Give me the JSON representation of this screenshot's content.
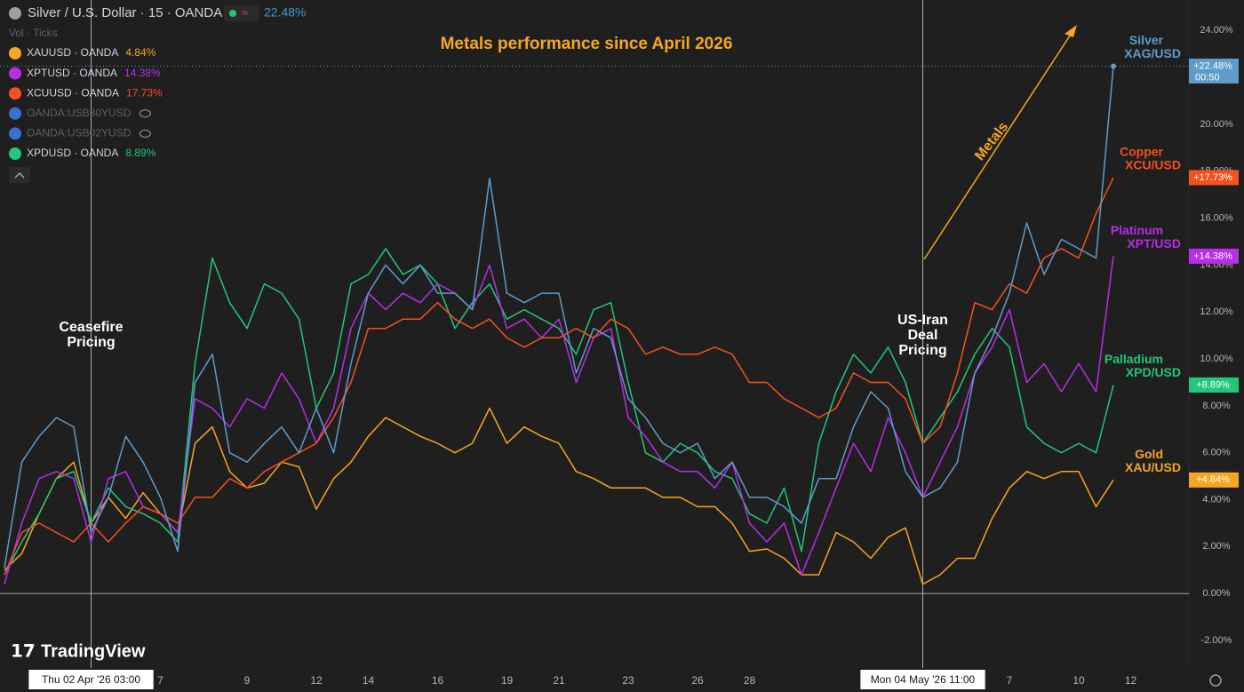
{
  "header": {
    "title": "Silver / U.S. Dollar · 15 · OANDA",
    "change": "22.48%",
    "volume": "Vol · Ticks"
  },
  "legend": [
    {
      "symbol": "XAUUSD · OANDA",
      "change": "4.84%",
      "color": "#f5a623"
    },
    {
      "symbol": "XPTUSD · OANDA",
      "change": "14.38%",
      "color": "#b72ee6"
    },
    {
      "symbol": "XCUUSD · OANDA",
      "change": "17.73%",
      "color": "#f4511e"
    },
    {
      "symbol": "OANDA:USB30YUSD",
      "color": "#6a6d78"
    },
    {
      "symbol": "OANDA:USB02YUSD",
      "color": "#6a6d78"
    },
    {
      "symbol": "XPDUSD · OANDA",
      "change": "8.89%",
      "color": "#22c77a"
    }
  ],
  "watermark": "TradingView",
  "chart_data": {
    "type": "line",
    "title": "Metals performance since April 2026",
    "arrow_label": "Metals",
    "countdown": "00:50",
    "annotations": [
      [
        "Ceasefire",
        "Pricing"
      ],
      [
        "US-Iran",
        "Deal",
        "Pricing"
      ]
    ],
    "categories": [
      null,
      null,
      null,
      null,
      null,
      "Thu 02 Apr '26  03:00",
      null,
      null,
      null,
      "7",
      null,
      null,
      null,
      null,
      "9",
      null,
      null,
      null,
      "12",
      null,
      null,
      "14",
      null,
      null,
      null,
      "16",
      null,
      null,
      null,
      "19",
      null,
      null,
      "21",
      null,
      null,
      null,
      "23",
      null,
      null,
      null,
      "26",
      null,
      null,
      "28",
      null,
      null,
      null,
      null,
      null,
      null,
      null,
      null,
      null,
      "Mon 04 May '26  11:00",
      null,
      null,
      null,
      null,
      "7",
      null,
      null,
      null,
      "10",
      null,
      null,
      "12"
    ],
    "ylim": [
      -3.1,
      25.3
    ],
    "yticks": [
      {
        "value": -2,
        "label": "-2.00%"
      },
      {
        "value": 0,
        "label": "0.00%"
      },
      {
        "value": 2,
        "label": "2.00%"
      },
      {
        "value": 4,
        "label": "4.00%"
      },
      {
        "value": 6,
        "label": "6.00%"
      },
      {
        "value": 8,
        "label": "8.00%"
      },
      {
        "value": 10,
        "label": "10.00%"
      },
      {
        "value": 12,
        "label": "12.00%"
      },
      {
        "value": 14,
        "label": "14.00%"
      },
      {
        "value": 16,
        "label": "16.00%"
      },
      {
        "value": 18,
        "label": "18.00%"
      },
      {
        "value": 20,
        "label": "20.00%"
      },
      {
        "value": 22,
        "label": "22.00%"
      },
      {
        "value": 24,
        "label": "24.00%"
      }
    ],
    "series": [
      {
        "name": "Gold",
        "symbol": "XAU/USD",
        "color": "#f5a623",
        "values": [
          1.0,
          1.7,
          3.4,
          4.9,
          5.6,
          3.0,
          4.1,
          3.2,
          4.3,
          3.4,
          2.6,
          6.4,
          7.1,
          5.2,
          4.5,
          4.7,
          5.6,
          5.4,
          3.6,
          4.9,
          5.6,
          6.7,
          7.5,
          7.1,
          6.7,
          6.4,
          6.0,
          6.4,
          7.9,
          6.4,
          7.1,
          6.7,
          6.4,
          5.2,
          4.9,
          4.5,
          4.5,
          4.5,
          4.1,
          4.1,
          3.7,
          3.7,
          3.0,
          1.8,
          1.9,
          1.5,
          0.8,
          0.8,
          2.6,
          2.2,
          1.5,
          2.4,
          2.8,
          0.4,
          0.8,
          1.5,
          1.5,
          3.2,
          4.5,
          5.2,
          4.9,
          5.2,
          5.2,
          3.7,
          4.84,
          null
        ],
        "value_labels": [
          null,
          null,
          null,
          null,
          null,
          null,
          null,
          null,
          null,
          null,
          null,
          null,
          null,
          null,
          null,
          null,
          null,
          null,
          null,
          null,
          null,
          null,
          null,
          null,
          null,
          null,
          null,
          null,
          null,
          null,
          null,
          null,
          null,
          null,
          null,
          null,
          null,
          null,
          null,
          null,
          null,
          null,
          null,
          null,
          null,
          null,
          null,
          null,
          null,
          null,
          null,
          null,
          null,
          null,
          null,
          null,
          null,
          null,
          null,
          null,
          null,
          null,
          null,
          null,
          "+4.84%",
          null
        ]
      },
      {
        "name": "Palladium",
        "symbol": "XPD/USD",
        "color": "#22c77a",
        "values": [
          0.8,
          2.2,
          3.4,
          4.9,
          5.2,
          3.0,
          4.5,
          3.7,
          3.4,
          3.0,
          2.2,
          9.8,
          14.3,
          12.4,
          11.3,
          13.2,
          12.8,
          11.7,
          7.9,
          9.4,
          13.2,
          13.6,
          14.7,
          13.6,
          14.0,
          13.2,
          11.3,
          12.4,
          13.2,
          11.7,
          12.1,
          11.7,
          11.3,
          10.2,
          12.1,
          12.4,
          9.0,
          6.0,
          5.6,
          6.4,
          6.0,
          5.2,
          4.9,
          3.4,
          3.0,
          4.5,
          1.8,
          6.4,
          8.6,
          10.2,
          9.4,
          10.5,
          9.0,
          6.4,
          7.5,
          8.6,
          10.2,
          11.3,
          10.5,
          7.1,
          6.4,
          6.0,
          6.4,
          6.0,
          8.89,
          null
        ],
        "value_labels": [
          null,
          null,
          null,
          null,
          null,
          null,
          null,
          null,
          null,
          null,
          null,
          null,
          null,
          null,
          null,
          null,
          null,
          null,
          null,
          null,
          null,
          null,
          null,
          null,
          null,
          null,
          null,
          null,
          null,
          null,
          null,
          null,
          null,
          null,
          null,
          null,
          null,
          null,
          null,
          null,
          null,
          null,
          null,
          null,
          null,
          null,
          null,
          null,
          null,
          null,
          null,
          null,
          null,
          null,
          null,
          null,
          null,
          null,
          null,
          null,
          null,
          null,
          null,
          null,
          "+8.89%",
          null
        ]
      },
      {
        "name": "Platinum",
        "symbol": "XPT/USD",
        "color": "#b72ee6",
        "values": [
          0.4,
          3.0,
          4.9,
          5.2,
          4.9,
          2.2,
          4.9,
          5.2,
          3.7,
          3.4,
          2.6,
          8.3,
          7.9,
          7.1,
          8.3,
          7.9,
          9.4,
          8.3,
          6.4,
          7.9,
          11.3,
          12.8,
          12.1,
          12.8,
          12.4,
          13.2,
          12.8,
          12.1,
          14.0,
          11.3,
          11.7,
          10.9,
          11.7,
          9.0,
          10.9,
          11.3,
          7.5,
          6.7,
          5.6,
          5.2,
          5.2,
          4.5,
          5.6,
          3.0,
          2.2,
          3.0,
          0.8,
          2.6,
          4.5,
          6.4,
          5.2,
          7.5,
          6.0,
          4.1,
          5.6,
          7.1,
          9.4,
          10.5,
          12.1,
          9.0,
          9.8,
          8.6,
          9.8,
          8.6,
          14.38,
          null
        ],
        "value_labels": [
          null,
          null,
          null,
          null,
          null,
          null,
          null,
          null,
          null,
          null,
          null,
          null,
          null,
          null,
          null,
          null,
          null,
          null,
          null,
          null,
          null,
          null,
          null,
          null,
          null,
          null,
          null,
          null,
          null,
          null,
          null,
          null,
          null,
          null,
          null,
          null,
          null,
          null,
          null,
          null,
          null,
          null,
          null,
          null,
          null,
          null,
          null,
          null,
          null,
          null,
          null,
          null,
          null,
          null,
          null,
          null,
          null,
          null,
          null,
          null,
          null,
          null,
          null,
          null,
          "+14.38%",
          null
        ]
      },
      {
        "name": "Copper",
        "symbol": "XCU/USD",
        "color": "#f4511e",
        "values": [
          0.8,
          2.6,
          3.0,
          2.6,
          2.2,
          3.0,
          2.2,
          3.0,
          3.7,
          3.4,
          3.0,
          4.1,
          4.1,
          4.9,
          4.5,
          5.2,
          5.6,
          6.0,
          6.4,
          7.5,
          9.0,
          11.3,
          11.3,
          11.7,
          11.7,
          12.4,
          11.7,
          11.3,
          11.7,
          10.9,
          10.5,
          10.9,
          10.9,
          11.3,
          10.9,
          11.7,
          11.3,
          10.2,
          10.5,
          10.2,
          10.2,
          10.5,
          10.2,
          9.0,
          9.0,
          8.3,
          7.9,
          7.5,
          7.9,
          9.4,
          9.0,
          9.0,
          8.3,
          6.4,
          7.1,
          9.4,
          12.4,
          12.1,
          13.2,
          12.8,
          14.3,
          14.7,
          14.3,
          16.2,
          17.73,
          null
        ],
        "value_labels": [
          null,
          null,
          null,
          null,
          null,
          null,
          null,
          null,
          null,
          null,
          null,
          null,
          null,
          null,
          null,
          null,
          null,
          null,
          null,
          null,
          null,
          null,
          null,
          null,
          null,
          null,
          null,
          null,
          null,
          null,
          null,
          null,
          null,
          null,
          null,
          null,
          null,
          null,
          null,
          null,
          null,
          null,
          null,
          null,
          null,
          null,
          null,
          null,
          null,
          null,
          null,
          null,
          null,
          null,
          null,
          null,
          null,
          null,
          null,
          null,
          null,
          null,
          null,
          null,
          "+17.73%",
          null
        ]
      },
      {
        "name": "Silver",
        "symbol": "XAG/USD",
        "color": "#5e9ccc",
        "values": [
          1.1,
          5.6,
          6.7,
          7.5,
          7.1,
          2.6,
          4.1,
          6.7,
          5.6,
          4.1,
          1.8,
          9.0,
          10.2,
          6.0,
          5.6,
          6.4,
          7.1,
          6.0,
          7.9,
          6.0,
          9.8,
          12.8,
          14.0,
          13.2,
          14.0,
          12.8,
          12.8,
          12.1,
          17.7,
          12.8,
          12.4,
          12.8,
          12.8,
          9.4,
          11.3,
          10.9,
          8.3,
          7.5,
          6.4,
          6.0,
          6.4,
          4.9,
          5.6,
          4.1,
          4.1,
          3.7,
          3.0,
          4.9,
          4.9,
          7.1,
          8.6,
          7.9,
          5.2,
          4.1,
          4.5,
          5.6,
          9.4,
          10.9,
          12.8,
          15.8,
          13.6,
          15.1,
          14.7,
          14.3,
          22.48,
          null
        ],
        "value_labels": [
          null,
          null,
          null,
          null,
          null,
          null,
          null,
          null,
          null,
          null,
          null,
          null,
          null,
          null,
          null,
          null,
          null,
          null,
          null,
          null,
          null,
          null,
          null,
          null,
          null,
          null,
          null,
          null,
          null,
          null,
          null,
          null,
          null,
          null,
          null,
          null,
          null,
          null,
          null,
          null,
          null,
          null,
          null,
          null,
          null,
          null,
          null,
          null,
          null,
          null,
          null,
          null,
          null,
          null,
          null,
          null,
          null,
          null,
          null,
          null,
          null,
          null,
          null,
          null,
          "+22.48%",
          null
        ]
      }
    ]
  }
}
